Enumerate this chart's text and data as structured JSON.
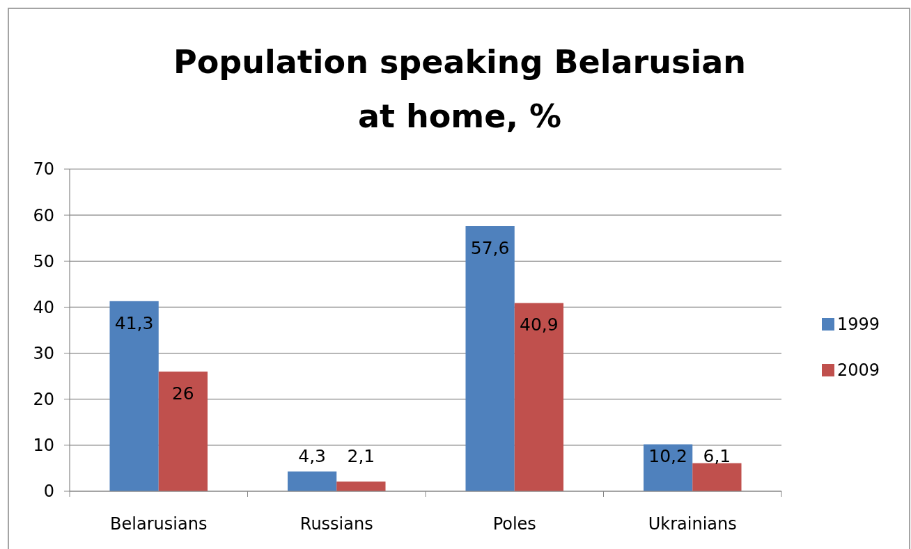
{
  "chart_data": {
    "type": "bar",
    "title": "Population speaking Belarusian at home, %",
    "categories": [
      "Belarusians",
      "Russians",
      "Poles",
      "Ukrainians"
    ],
    "series": [
      {
        "name": "1999",
        "color": "#4f81bd",
        "values": [
          41.3,
          4.3,
          57.6,
          10.2
        ],
        "value_labels": [
          "41,3",
          "4,3",
          "57,6",
          "10,2"
        ]
      },
      {
        "name": "2009",
        "color": "#c0504d",
        "values": [
          26,
          2.1,
          40.9,
          6.1
        ],
        "value_labels": [
          "26",
          "2,1",
          "40,9",
          "6,1"
        ]
      }
    ],
    "ylim": [
      0,
      70
    ],
    "yticks": [
      0,
      10,
      20,
      30,
      40,
      50,
      60,
      70
    ],
    "grid": "y",
    "legend": "right"
  }
}
